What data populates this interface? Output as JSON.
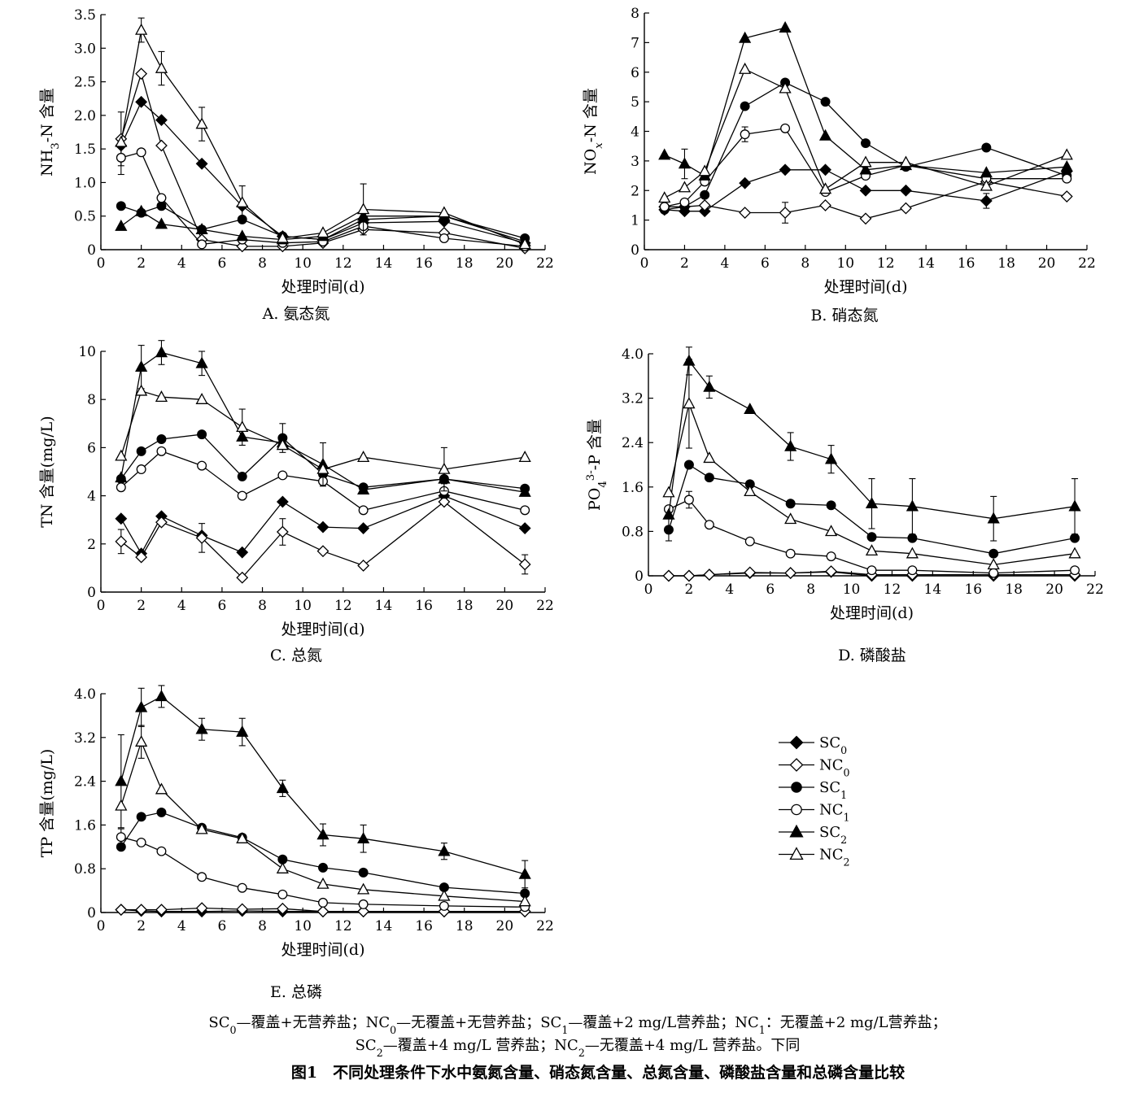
{
  "legend": [
    {
      "key": "SC0",
      "base": "SC",
      "sub": "0",
      "marker": "diamond",
      "filled": true
    },
    {
      "key": "NC0",
      "base": "NC",
      "sub": "0",
      "marker": "diamond",
      "filled": false
    },
    {
      "key": "SC1",
      "base": "SC",
      "sub": "1",
      "marker": "circle",
      "filled": true
    },
    {
      "key": "NC1",
      "base": "NC",
      "sub": "1",
      "marker": "circle",
      "filled": false
    },
    {
      "key": "SC2",
      "base": "SC",
      "sub": "2",
      "marker": "triangle",
      "filled": true
    },
    {
      "key": "NC2",
      "base": "NC",
      "sub": "2",
      "marker": "triangle",
      "filled": false
    }
  ],
  "note": {
    "line1": [
      {
        "t": "SC"
      },
      {
        "t": "0",
        "sub": true
      },
      {
        "t": "—覆盖+无营养盐；NC"
      },
      {
        "t": "0",
        "sub": true
      },
      {
        "t": "—无覆盖+无营养盐；SC"
      },
      {
        "t": "1",
        "sub": true
      },
      {
        "t": "—覆盖+2 mg/L营养盐；NC"
      },
      {
        "t": "1",
        "sub": true
      },
      {
        "t": "：无覆盖+2 mg/L营养盐；"
      }
    ],
    "line2": [
      {
        "t": "SC"
      },
      {
        "t": "2",
        "sub": true
      },
      {
        "t": "—覆盖+4 mg/L 营养盐；NC"
      },
      {
        "t": "2",
        "sub": true
      },
      {
        "t": "—无覆盖+4 mg/L 营养盐。下同"
      }
    ]
  },
  "figure_title": "图1　不同处理条件下水中氨氮含量、硝态氮含量、总氮含量、磷酸盐含量和总磷含量比较",
  "chart_data": [
    {
      "id": "A",
      "type": "line",
      "caption": "A. 氨态氮",
      "xlabel": "处理时间(d)",
      "ylabel": [
        {
          "t": "NH"
        },
        {
          "t": "3",
          "sub": true
        },
        {
          "t": "-N 含量"
        }
      ],
      "xlim": [
        0,
        22
      ],
      "ylim": [
        0,
        3.5
      ],
      "xticks": [
        0,
        2,
        4,
        6,
        8,
        10,
        12,
        14,
        16,
        18,
        20,
        22
      ],
      "yticks": [
        "0",
        "0.5",
        "1.0",
        "1.5",
        "2.0",
        "2.5",
        "3.0",
        "3.5"
      ],
      "x": [
        1,
        2,
        3,
        5,
        7,
        9,
        11,
        13,
        17,
        21
      ],
      "series": [
        {
          "key": "SC0",
          "values": [
            1.55,
            2.2,
            1.93,
            1.28,
            0.65,
            0.2,
            0.15,
            0.4,
            0.42,
            0.1
          ]
        },
        {
          "key": "NC0",
          "values": [
            1.65,
            2.62,
            1.55,
            0.15,
            0.05,
            0.05,
            0.1,
            0.3,
            0.25,
            0.02
          ]
        },
        {
          "key": "SC1",
          "values": [
            0.65,
            0.55,
            0.65,
            0.3,
            0.45,
            0.2,
            0.15,
            0.45,
            0.5,
            0.17
          ]
        },
        {
          "key": "NC1",
          "values": [
            1.37,
            1.45,
            0.77,
            0.08,
            0.15,
            0.1,
            0.12,
            0.35,
            0.17,
            0.05
          ]
        },
        {
          "key": "SC2",
          "values": [
            0.35,
            0.57,
            0.38,
            0.3,
            0.2,
            0.15,
            0.2,
            0.5,
            0.5,
            0.12
          ]
        },
        {
          "key": "NC2",
          "values": [
            1.6,
            3.27,
            2.7,
            1.87,
            0.7,
            0.17,
            0.25,
            0.6,
            0.55,
            0.08
          ]
        }
      ],
      "errors": [
        {
          "key": "NC2",
          "x": 2,
          "err": 0.18
        },
        {
          "key": "NC2",
          "x": 3,
          "err": 0.25
        },
        {
          "key": "NC2",
          "x": 5,
          "err": 0.25
        },
        {
          "key": "NC0",
          "x": 1,
          "err": 0.4
        },
        {
          "key": "NC2",
          "x": 13,
          "err": 0.38
        },
        {
          "key": "NC2",
          "x": 7,
          "err": 0.25
        },
        {
          "key": "NC1",
          "x": 1,
          "err": 0.25
        }
      ]
    },
    {
      "id": "B",
      "type": "line",
      "caption": "B. 硝态氮",
      "xlabel": "处理时间(d)",
      "ylabel": [
        {
          "t": "NO"
        },
        {
          "t": "x",
          "sub": true,
          "italic": true
        },
        {
          "t": "-N 含量"
        }
      ],
      "xlim": [
        0,
        22
      ],
      "ylim": [
        0,
        8
      ],
      "xticks": [
        0,
        2,
        4,
        6,
        8,
        10,
        12,
        14,
        16,
        18,
        20,
        22
      ],
      "yticks": [
        "0",
        "1",
        "2",
        "3",
        "4",
        "5",
        "6",
        "7",
        "8"
      ],
      "x": [
        1,
        2,
        3,
        5,
        7,
        9,
        11,
        13,
        17,
        21
      ],
      "series": [
        {
          "key": "SC0",
          "values": [
            1.35,
            1.3,
            1.3,
            2.25,
            2.7,
            2.7,
            2.0,
            2.0,
            1.65,
            2.65
          ]
        },
        {
          "key": "NC0",
          "values": [
            1.45,
            1.45,
            1.5,
            1.25,
            1.25,
            1.5,
            1.05,
            1.4,
            2.3,
            1.8
          ]
        },
        {
          "key": "SC1",
          "values": [
            1.35,
            1.45,
            1.85,
            4.85,
            5.65,
            5.0,
            3.6,
            2.8,
            3.45,
            2.5
          ]
        },
        {
          "key": "NC1",
          "values": [
            1.45,
            1.6,
            2.3,
            3.9,
            4.1,
            1.95,
            2.5,
            2.85,
            2.4,
            2.4
          ]
        },
        {
          "key": "SC2",
          "values": [
            3.2,
            2.9,
            2.5,
            7.15,
            7.5,
            3.85,
            2.7,
            2.85,
            2.6,
            2.8
          ]
        },
        {
          "key": "NC2",
          "values": [
            1.75,
            2.1,
            2.65,
            6.1,
            5.45,
            2.05,
            2.95,
            2.95,
            2.15,
            3.2
          ]
        }
      ],
      "errors": [
        {
          "key": "NC1",
          "x": 5,
          "err": 0.25
        },
        {
          "key": "NC0",
          "x": 7,
          "err": 0.35
        },
        {
          "key": "SC2",
          "x": 2,
          "err": 0.5
        },
        {
          "key": "SC0",
          "x": 17,
          "err": 0.25
        }
      ]
    },
    {
      "id": "C",
      "type": "line",
      "caption": "C. 总氮",
      "xlabel": "处理时间(d)",
      "ylabel": [
        {
          "t": "TN 含量(mg/L)"
        }
      ],
      "xlim": [
        0,
        22
      ],
      "ylim": [
        0,
        10
      ],
      "xticks": [
        0,
        2,
        4,
        6,
        8,
        10,
        12,
        14,
        16,
        18,
        20,
        22
      ],
      "yticks": [
        "0",
        "2",
        "4",
        "6",
        "8",
        "10"
      ],
      "x": [
        1,
        2,
        3,
        5,
        7,
        9,
        11,
        13,
        17,
        21
      ],
      "series": [
        {
          "key": "SC0",
          "values": [
            3.05,
            1.6,
            3.15,
            2.35,
            1.65,
            3.75,
            2.7,
            2.65,
            4.0,
            2.65
          ]
        },
        {
          "key": "NC0",
          "values": [
            2.1,
            1.45,
            2.9,
            2.25,
            0.6,
            2.5,
            1.7,
            1.1,
            3.75,
            1.15
          ]
        },
        {
          "key": "SC1",
          "values": [
            4.7,
            5.85,
            6.35,
            6.55,
            4.8,
            6.4,
            4.9,
            4.35,
            4.7,
            4.3
          ]
        },
        {
          "key": "NC1",
          "values": [
            4.35,
            5.1,
            5.85,
            5.25,
            4.0,
            4.85,
            4.6,
            3.4,
            4.2,
            3.4
          ]
        },
        {
          "key": "SC2",
          "values": [
            4.75,
            9.35,
            9.95,
            9.5,
            6.45,
            6.2,
            5.3,
            4.25,
            4.7,
            4.15
          ]
        },
        {
          "key": "NC2",
          "values": [
            5.65,
            8.35,
            8.1,
            8.0,
            6.85,
            6.1,
            5.1,
            5.6,
            5.1,
            5.6
          ]
        }
      ],
      "errors": [
        {
          "key": "SC2",
          "x": 2,
          "err": 0.9
        },
        {
          "key": "SC2",
          "x": 3,
          "err": 0.5
        },
        {
          "key": "SC2",
          "x": 5,
          "err": 0.5
        },
        {
          "key": "NC2",
          "x": 7,
          "err": 0.75
        },
        {
          "key": "SC1",
          "x": 9,
          "err": 0.6
        },
        {
          "key": "SC2",
          "x": 11,
          "err": 0.9
        },
        {
          "key": "NC2",
          "x": 17,
          "err": 0.9
        },
        {
          "key": "NC1",
          "x": 17,
          "err": 0.3
        },
        {
          "key": "NC0",
          "x": 9,
          "err": 0.55
        },
        {
          "key": "NC0",
          "x": 1,
          "err": 0.5
        },
        {
          "key": "NC0",
          "x": 5,
          "err": 0.6
        },
        {
          "key": "NC0",
          "x": 21,
          "err": 0.4
        }
      ]
    },
    {
      "id": "D",
      "type": "line",
      "caption": "D. 磷酸盐",
      "xlabel": "处理时间(d)",
      "ylabel": [
        {
          "t": "PO"
        },
        {
          "t": "4",
          "sub": true
        },
        {
          "t": "3-",
          "sup": true
        },
        {
          "t": "-P 含量"
        }
      ],
      "xlim": [
        0,
        22
      ],
      "ylim": [
        0,
        4.0
      ],
      "xticks": [
        0,
        2,
        4,
        6,
        8,
        10,
        12,
        14,
        16,
        18,
        20,
        22
      ],
      "yticks": [
        "0",
        "0.8",
        "1.6",
        "2.4",
        "3.2",
        "4.0"
      ],
      "x": [
        1,
        2,
        3,
        5,
        7,
        9,
        11,
        13,
        17,
        21
      ],
      "series": [
        {
          "key": "SC0",
          "values": [
            0.0,
            0.0,
            0.02,
            0.05,
            0.05,
            0.07,
            0.0,
            0.0,
            0.0,
            0.0
          ]
        },
        {
          "key": "NC0",
          "values": [
            0.0,
            0.0,
            0.02,
            0.06,
            0.05,
            0.08,
            0.02,
            0.02,
            0.02,
            0.02
          ]
        },
        {
          "key": "SC1",
          "values": [
            0.83,
            2.0,
            1.77,
            1.65,
            1.3,
            1.27,
            0.7,
            0.68,
            0.4,
            0.68
          ]
        },
        {
          "key": "NC1",
          "values": [
            1.2,
            1.37,
            0.92,
            0.62,
            0.4,
            0.35,
            0.1,
            0.1,
            0.05,
            0.1
          ]
        },
        {
          "key": "SC2",
          "values": [
            1.1,
            3.87,
            3.4,
            3.0,
            2.33,
            2.1,
            1.3,
            1.25,
            1.03,
            1.25
          ]
        },
        {
          "key": "NC2",
          "values": [
            1.5,
            3.1,
            2.12,
            1.52,
            1.02,
            0.8,
            0.45,
            0.4,
            0.2,
            0.4
          ]
        }
      ],
      "errors": [
        {
          "key": "SC2",
          "x": 2,
          "err": 0.25
        },
        {
          "key": "SC2",
          "x": 3,
          "err": 0.2
        },
        {
          "key": "SC2",
          "x": 7,
          "err": 0.25
        },
        {
          "key": "SC2",
          "x": 9,
          "err": 0.25
        },
        {
          "key": "SC2",
          "x": 11,
          "err": 0.45
        },
        {
          "key": "SC2",
          "x": 13,
          "err": 0.5
        },
        {
          "key": "SC2",
          "x": 17,
          "err": 0.4
        },
        {
          "key": "SC2",
          "x": 21,
          "err": 0.5
        },
        {
          "key": "NC2",
          "x": 2,
          "err": 0.8
        },
        {
          "key": "SC1",
          "x": 1,
          "err": 0.2
        },
        {
          "key": "NC1",
          "x": 2,
          "err": 0.15
        }
      ]
    },
    {
      "id": "E",
      "type": "line",
      "caption": "E. 总磷",
      "xlabel": "处理时间(d)",
      "ylabel": [
        {
          "t": "TP 含量(mg/L)"
        }
      ],
      "xlim": [
        0,
        22
      ],
      "ylim": [
        0,
        4.0
      ],
      "xticks": [
        0,
        2,
        4,
        6,
        8,
        10,
        12,
        14,
        16,
        18,
        20,
        22
      ],
      "yticks": [
        "0",
        "0.8",
        "1.6",
        "2.4",
        "3.2",
        "4.0"
      ],
      "x": [
        1,
        2,
        3,
        5,
        7,
        9,
        11,
        13,
        17,
        21
      ],
      "series": [
        {
          "key": "SC0",
          "values": [
            0.05,
            0.03,
            0.02,
            0.02,
            0.03,
            0.02,
            0.02,
            0.02,
            0.02,
            0.02
          ]
        },
        {
          "key": "NC0",
          "values": [
            0.05,
            0.05,
            0.05,
            0.08,
            0.06,
            0.07,
            0.02,
            0.02,
            0.02,
            0.02
          ]
        },
        {
          "key": "SC1",
          "values": [
            1.2,
            1.75,
            1.83,
            1.55,
            1.37,
            0.97,
            0.82,
            0.73,
            0.46,
            0.35
          ]
        },
        {
          "key": "NC1",
          "values": [
            1.38,
            1.28,
            1.12,
            0.65,
            0.45,
            0.33,
            0.18,
            0.15,
            0.12,
            0.1
          ]
        },
        {
          "key": "SC2",
          "values": [
            2.4,
            3.75,
            3.95,
            3.35,
            3.3,
            2.27,
            1.42,
            1.35,
            1.12,
            0.7
          ]
        },
        {
          "key": "NC2",
          "values": [
            1.95,
            3.12,
            2.25,
            1.52,
            1.35,
            0.8,
            0.52,
            0.42,
            0.3,
            0.2
          ]
        }
      ],
      "errors": [
        {
          "key": "SC2",
          "x": 1,
          "err": 0.85
        },
        {
          "key": "SC2",
          "x": 2,
          "err": 0.35
        },
        {
          "key": "SC2",
          "x": 3,
          "err": 0.2
        },
        {
          "key": "SC2",
          "x": 5,
          "err": 0.2
        },
        {
          "key": "SC2",
          "x": 7,
          "err": 0.25
        },
        {
          "key": "SC2",
          "x": 9,
          "err": 0.15
        },
        {
          "key": "SC2",
          "x": 11,
          "err": 0.2
        },
        {
          "key": "SC2",
          "x": 13,
          "err": 0.25
        },
        {
          "key": "SC2",
          "x": 17,
          "err": 0.15
        },
        {
          "key": "SC2",
          "x": 21,
          "err": 0.25
        },
        {
          "key": "NC1",
          "x": 1,
          "err": 0.15
        },
        {
          "key": "NC2",
          "x": 2,
          "err": 0.3
        }
      ]
    }
  ]
}
